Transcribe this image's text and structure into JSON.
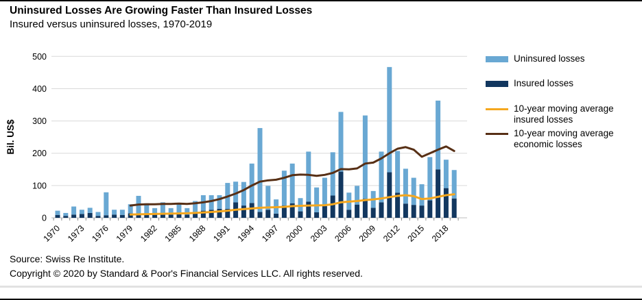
{
  "header": {
    "title": "Uninsured Losses Are Growing Faster Than Insured Losses",
    "subtitle": "Insured versus uninsured losses, 1970-2019"
  },
  "footer": {
    "source": "Source: Swiss Re Institute.",
    "copyright": "Copyright © 2020 by Standard & Poor's Financial Services LLC. All rights reserved."
  },
  "legend": {
    "items": [
      {
        "label": "Uninsured losses",
        "label2": "",
        "color": "#69A8D3",
        "swatch": "bar"
      },
      {
        "label": "Insured losses",
        "label2": "",
        "color": "#12375F",
        "swatch": "bar"
      },
      {
        "label": "10-year moving average",
        "label2": "insured losses",
        "color": "#F5A71E",
        "swatch": "line"
      },
      {
        "label": "10-year moving average",
        "label2": "economic losses",
        "color": "#572F15",
        "swatch": "line"
      }
    ]
  },
  "chart_data": {
    "type": "bar",
    "title": "Uninsured Losses Are Growing Faster Than Insured Losses",
    "subtitle": "Insured versus uninsured losses, 1970-2019",
    "xlabel": "",
    "ylabel": "Bil. US$",
    "ylim": [
      0,
      500
    ],
    "yticks": [
      0,
      100,
      200,
      300,
      400,
      500
    ],
    "grid": true,
    "legend_position": "right",
    "x_tick_years": [
      1970,
      1973,
      1976,
      1979,
      1982,
      1985,
      1988,
      1991,
      1994,
      1997,
      2000,
      2003,
      2006,
      2009,
      2012,
      2015,
      2018
    ],
    "years": [
      1970,
      1971,
      1972,
      1973,
      1974,
      1975,
      1976,
      1977,
      1978,
      1979,
      1980,
      1981,
      1982,
      1983,
      1984,
      1985,
      1986,
      1987,
      1988,
      1989,
      1990,
      1991,
      1992,
      1993,
      1994,
      1995,
      1996,
      1997,
      1998,
      1999,
      2000,
      2001,
      2002,
      2003,
      2004,
      2005,
      2006,
      2007,
      2008,
      2009,
      2010,
      2011,
      2012,
      2013,
      2014,
      2015,
      2016,
      2017,
      2018,
      2019
    ],
    "series": [
      {
        "name": "Insured losses",
        "type": "bar",
        "stack": "losses",
        "color": "#12375F",
        "values": [
          9,
          6,
          10,
          12,
          15,
          6,
          8,
          10,
          9,
          14,
          12,
          10,
          12,
          15,
          10,
          14,
          10,
          18,
          22,
          25,
          28,
          28,
          48,
          38,
          46,
          18,
          25,
          13,
          38,
          45,
          20,
          50,
          17,
          36,
          69,
          143,
          25,
          41,
          59,
          31,
          48,
          141,
          78,
          44,
          40,
          38,
          54,
          150,
          92,
          60
        ]
      },
      {
        "name": "Uninsured losses",
        "type": "bar",
        "stack": "losses",
        "color": "#69A8D3",
        "values": [
          13,
          9,
          25,
          13,
          16,
          12,
          71,
          15,
          16,
          28,
          56,
          35,
          18,
          33,
          20,
          30,
          20,
          34,
          48,
          45,
          42,
          80,
          64,
          73,
          122,
          260,
          74,
          44,
          108,
          123,
          41,
          155,
          77,
          88,
          134,
          185,
          53,
          58,
          258,
          52,
          157,
          326,
          129,
          108,
          84,
          66,
          134,
          213,
          88,
          88
        ]
      },
      {
        "name": "10-year moving average insured losses",
        "type": "line",
        "color": "#F5A71E",
        "start_year": 1979,
        "values": [
          10,
          11,
          11.5,
          12,
          12.5,
          13,
          13.5,
          14,
          15,
          16.5,
          18,
          20,
          22,
          25,
          27,
          29,
          31,
          32,
          33,
          34,
          36,
          37,
          38,
          38.5,
          39,
          42,
          48,
          50,
          52,
          55,
          57,
          60,
          64,
          68,
          70,
          67,
          58,
          60,
          65,
          70,
          73
        ]
      },
      {
        "name": "10-year moving average economic losses",
        "type": "line",
        "color": "#572F15",
        "start_year": 1979,
        "values": [
          38,
          41,
          42,
          42,
          43,
          43,
          44,
          43,
          45,
          48,
          52,
          58,
          66,
          75,
          86,
          100,
          112,
          116,
          118,
          124,
          132,
          134,
          133,
          130,
          133,
          139,
          151,
          150,
          153,
          168,
          171,
          184,
          200,
          214,
          219,
          211,
          189,
          200,
          211,
          221,
          207
        ]
      }
    ]
  }
}
